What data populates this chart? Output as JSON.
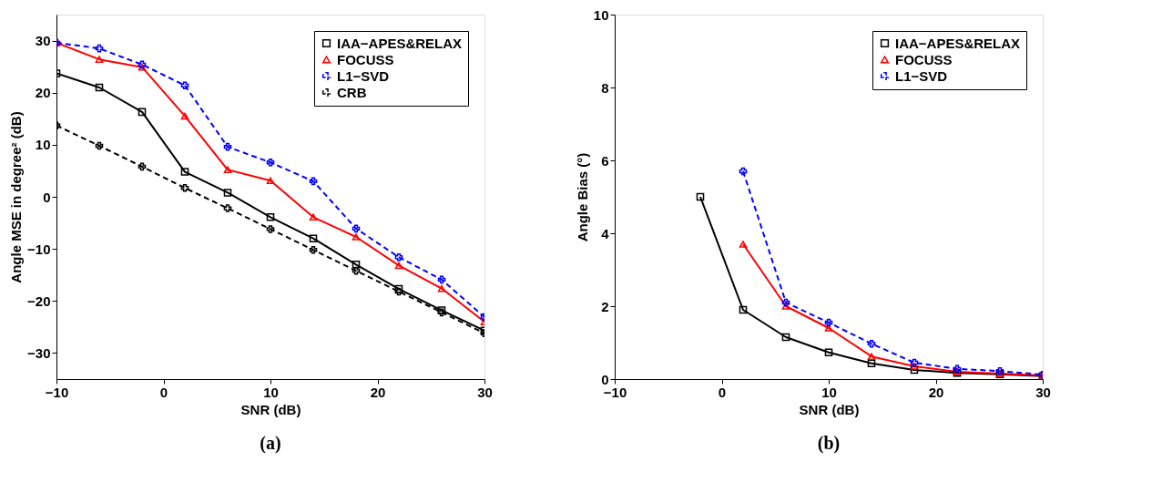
{
  "chart_data": [
    {
      "type": "line",
      "title": "(a)",
      "xlabel": "SNR (dB)",
      "ylabel": "Angle MSE in degree² (dB)",
      "x": [
        -10,
        -6,
        -2,
        2,
        6,
        10,
        14,
        18,
        22,
        26,
        30
      ],
      "xlim": [
        -10,
        30
      ],
      "xticks": [
        -10,
        0,
        10,
        20,
        30
      ],
      "ylim": [
        -35,
        35
      ],
      "yticks": [
        -30,
        -20,
        -10,
        0,
        10,
        20,
        30
      ],
      "grid": false,
      "legend": "top right",
      "series": [
        {
          "name": "IAA−APES&RELAX",
          "color": "#000000",
          "marker": "square",
          "line_style": "solid",
          "values": [
            23.7,
            21.0,
            16.3,
            4.8,
            0.8,
            -3.9,
            -8.0,
            -13.0,
            -17.7,
            -21.8,
            -25.7
          ]
        },
        {
          "name": "FOCUSS",
          "color": "#ff0000",
          "marker": "triangle",
          "line_style": "solid",
          "values": [
            29.6,
            26.4,
            24.9,
            15.5,
            5.2,
            3.1,
            -3.9,
            -7.7,
            -13.2,
            -17.6,
            -24.0
          ]
        },
        {
          "name": "L1−SVD",
          "color": "#0000ff",
          "marker": "cross",
          "line_style": "dashed",
          "values": [
            29.6,
            28.5,
            25.4,
            21.4,
            9.6,
            6.6,
            3.0,
            -6.1,
            -11.6,
            -15.9,
            -23.1
          ]
        },
        {
          "name": "CRB",
          "color": "#000000",
          "marker": "cross",
          "line_style": "dashed",
          "values": [
            13.7,
            9.8,
            5.8,
            1.7,
            -2.2,
            -6.2,
            -10.2,
            -14.2,
            -18.2,
            -22.2,
            -26.2
          ]
        }
      ]
    },
    {
      "type": "line",
      "title": "(b)",
      "xlabel": "SNR (dB)",
      "ylabel": "Angle Bias (°)",
      "xlim": [
        -10,
        30
      ],
      "xticks": [
        -10,
        0,
        10,
        20,
        30
      ],
      "ylim": [
        0,
        10
      ],
      "yticks": [
        0,
        2,
        4,
        6,
        8,
        10
      ],
      "grid": false,
      "legend": "top right",
      "series": [
        {
          "name": "IAA−APES&RELAX",
          "color": "#000000",
          "marker": "square",
          "line_style": "solid",
          "x": [
            -2,
            2,
            6,
            10,
            14,
            18,
            22,
            26,
            30
          ],
          "values": [
            5.0,
            1.9,
            1.15,
            0.73,
            0.43,
            0.25,
            0.17,
            0.13,
            0.08
          ]
        },
        {
          "name": "FOCUSS",
          "color": "#ff0000",
          "marker": "triangle",
          "line_style": "solid",
          "x": [
            2,
            6,
            10,
            14,
            18,
            22,
            26,
            30
          ],
          "values": [
            3.7,
            2.0,
            1.4,
            0.62,
            0.35,
            0.2,
            0.15,
            0.1
          ]
        },
        {
          "name": "L1−SVD",
          "color": "#0000ff",
          "marker": "cross",
          "line_style": "dashed",
          "x": [
            2,
            6,
            10,
            14,
            18,
            22,
            26,
            30
          ],
          "values": [
            5.7,
            2.1,
            1.55,
            0.97,
            0.45,
            0.28,
            0.22,
            0.12
          ]
        }
      ]
    }
  ]
}
